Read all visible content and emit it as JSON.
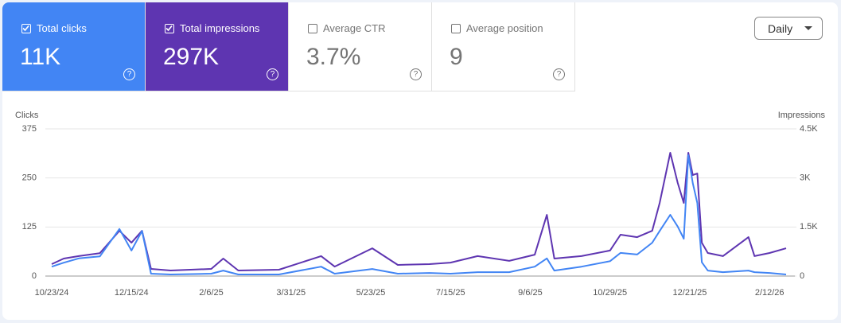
{
  "metrics": [
    {
      "label": "Total clicks",
      "value": "11K",
      "checked": true,
      "color": "#4285f4"
    },
    {
      "label": "Total impressions",
      "value": "297K",
      "checked": true,
      "color": "#5e35b1"
    },
    {
      "label": "Average CTR",
      "value": "3.7%",
      "checked": false,
      "color": "#ffffff"
    },
    {
      "label": "Average position",
      "value": "9",
      "checked": false,
      "color": "#ffffff"
    }
  ],
  "period_selector": "Daily",
  "chart_data": {
    "type": "line",
    "y_label": "Clicks",
    "y2_label": "Impressions",
    "x": [
      "10/23/24",
      "10/31/24",
      "11/10/24",
      "11/24/24",
      "12/7/24",
      "12/15/24",
      "12/22/24",
      "12/28/24",
      "1/10/25",
      "2/6/25",
      "2/14/25",
      "2/24/25",
      "3/23/25",
      "4/20/25",
      "4/29/25",
      "5/24/25",
      "6/10/25",
      "7/1/25",
      "7/15/25",
      "8/2/25",
      "8/23/25",
      "9/9/25",
      "9/17/25",
      "9/22/25",
      "10/10/25",
      "10/29/25",
      "11/5/25",
      "11/16/25",
      "11/26/25",
      "12/1/25",
      "12/8/25",
      "12/13/25",
      "12/17/25",
      "12/20/25",
      "12/23/25",
      "12/26/25",
      "12/29/25",
      "1/2/26",
      "1/12/26",
      "1/29/26",
      "2/2/26",
      "2/12/26",
      "2/23/26"
    ],
    "xlim": [
      "10/23/24",
      "2/23/26"
    ],
    "xticks": [
      "10/23/24",
      "12/15/24",
      "2/6/25",
      "3/31/25",
      "5/23/25",
      "7/15/25",
      "9/6/25",
      "10/29/25",
      "12/21/25",
      "2/12/26"
    ],
    "ylim": [
      0,
      375
    ],
    "yticks": [
      0,
      125,
      250,
      375
    ],
    "y2lim": [
      0,
      4500
    ],
    "y2ticks": [
      0,
      {
        "value": 1500,
        "label": "1.5K"
      },
      {
        "value": 3000,
        "label": "3K"
      },
      {
        "value": 4500,
        "label": "4.5K"
      }
    ],
    "grid": true,
    "series": [
      {
        "name": "Clicks",
        "color": "#4285f4",
        "axis": "y",
        "values": [
          24,
          34,
          45,
          50,
          120,
          65,
          115,
          6,
          4,
          6,
          14,
          4,
          4,
          24,
          6,
          18,
          6,
          8,
          6,
          10,
          10,
          24,
          45,
          14,
          24,
          38,
          59,
          55,
          85,
          115,
          156,
          126,
          95,
          308,
          237,
          186,
          35,
          14,
          10,
          14,
          10,
          8,
          4
        ]
      },
      {
        "name": "Impressions",
        "color": "#5e35b1",
        "axis": "y2",
        "values": [
          365,
          535,
          610,
          700,
          1385,
          1020,
          1385,
          220,
          170,
          220,
          535,
          170,
          195,
          610,
          290,
          850,
          340,
          365,
          410,
          610,
          465,
          655,
          1870,
          535,
          610,
          780,
          1265,
          1190,
          1385,
          2235,
          3770,
          2845,
          2235,
          3770,
          3090,
          3135,
          1020,
          705,
          610,
          1190,
          610,
          705,
          850
        ]
      }
    ]
  }
}
